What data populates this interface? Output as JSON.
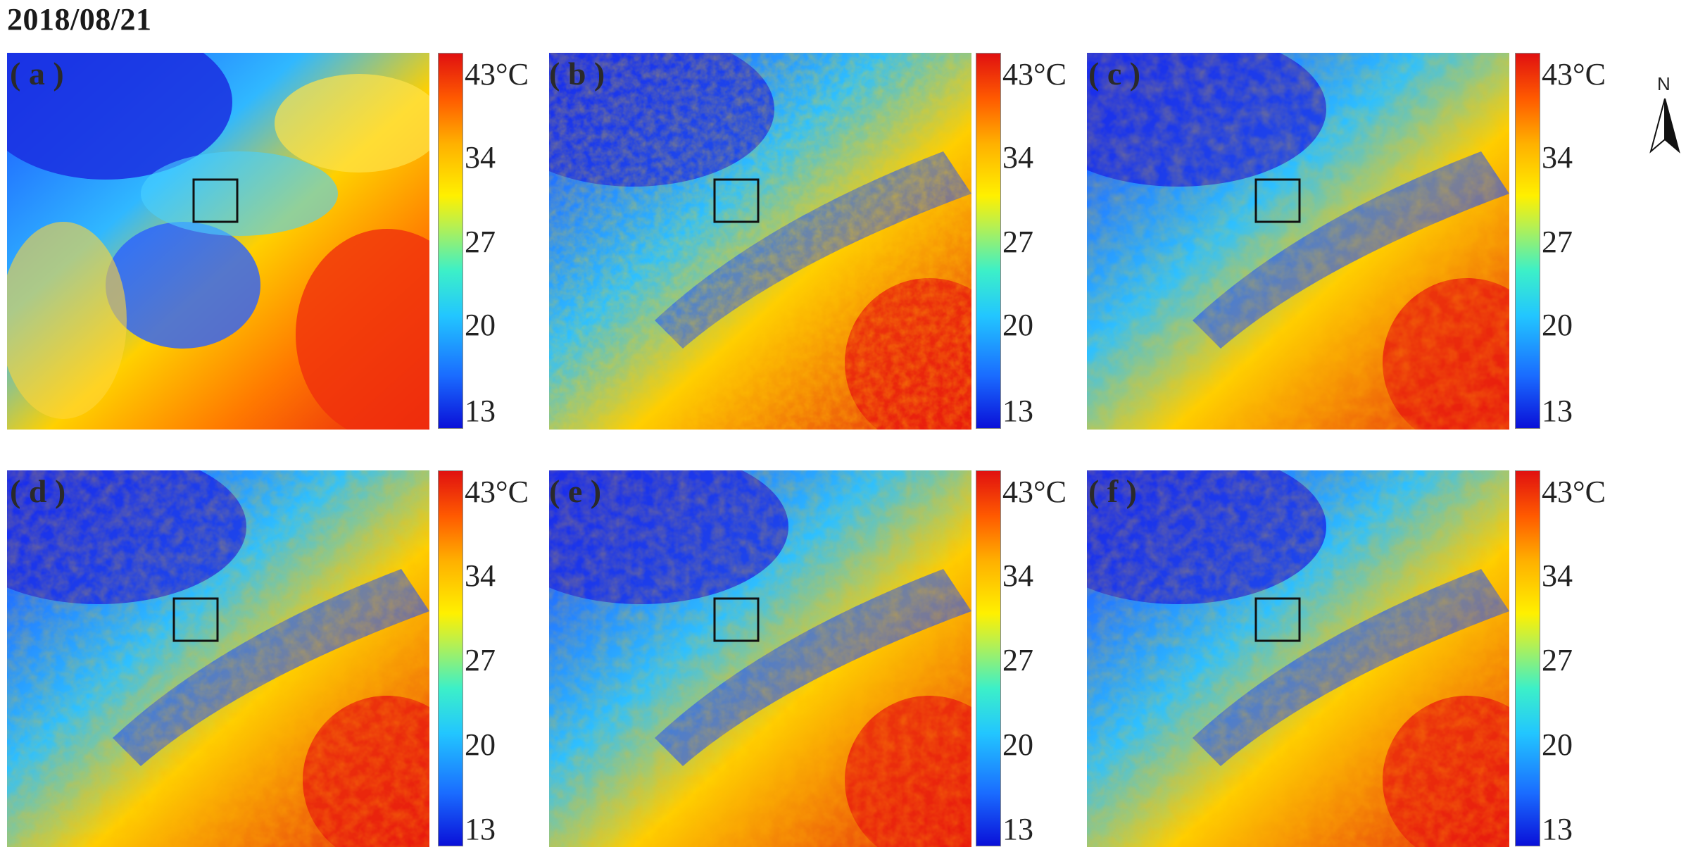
{
  "date": "2018/08/21",
  "colorbar": {
    "ticks": [
      "43°C",
      "34",
      "27",
      "20",
      "13"
    ],
    "colors": [
      "#0a10d8",
      "#1a6cff",
      "#22c6ff",
      "#3cf0c8",
      "#b8f050",
      "#fff000",
      "#ffb000",
      "#ff5a00",
      "#e01010"
    ]
  },
  "panels": [
    {
      "id": "a",
      "label": "( a )"
    },
    {
      "id": "b",
      "label": "( b )"
    },
    {
      "id": "c",
      "label": "( c )"
    },
    {
      "id": "d",
      "label": "( d )"
    },
    {
      "id": "e",
      "label": "( e )"
    },
    {
      "id": "f",
      "label": "( f )"
    }
  ],
  "compass": {
    "label": "N",
    "icon": "north-arrow-icon"
  }
}
